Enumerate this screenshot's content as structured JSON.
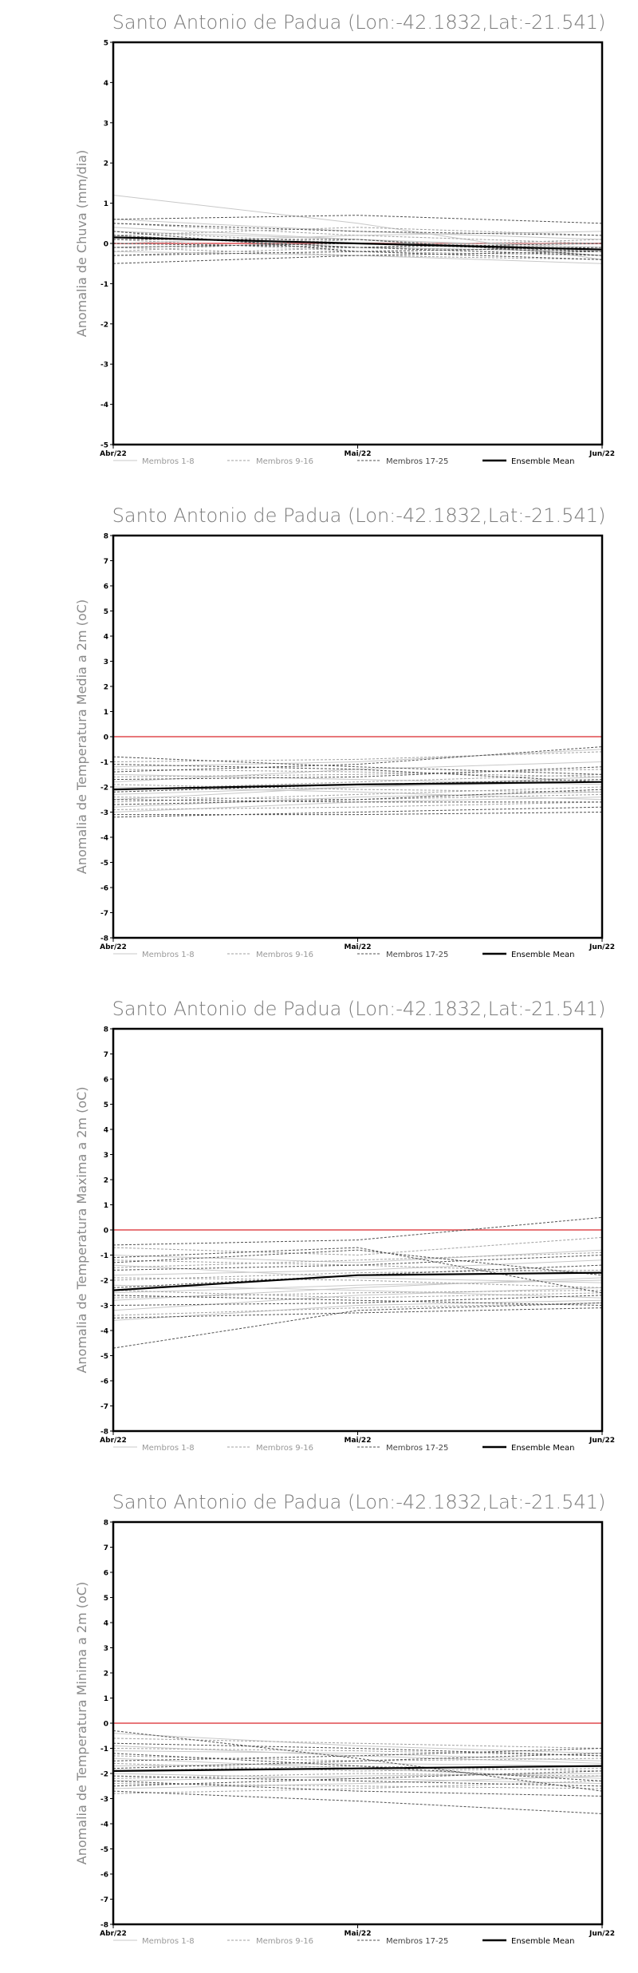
{
  "chart_data": [
    {
      "type": "line",
      "title": "Santo Antonio de Padua (Lon:-42.1832,Lat:-21.541)",
      "ylabel": "Anomalia de Chuva (mm/dia)",
      "xlabel": "",
      "categories": [
        "Abr/22",
        "Mai/22",
        "Jun/22"
      ],
      "ylim": [
        -5,
        5
      ],
      "yticks": [
        -5,
        -4,
        -3,
        -2,
        -1,
        0,
        1,
        2,
        3,
        4,
        5
      ],
      "zero_line_color": "#e8777a",
      "legend": [
        "Membros 1-8",
        "Membros 9-16",
        "Membros 17-25",
        "Ensemble Mean"
      ],
      "series": [
        {
          "group": "Membros 1-8",
          "values": [
            1.2,
            0.5,
            -0.4
          ]
        },
        {
          "group": "Membros 1-8",
          "values": [
            0.6,
            0.3,
            0.1
          ]
        },
        {
          "group": "Membros 1-8",
          "values": [
            0.4,
            0.1,
            -0.3
          ]
        },
        {
          "group": "Membros 1-8",
          "values": [
            0.2,
            -0.1,
            -0.2
          ]
        },
        {
          "group": "Membros 1-8",
          "values": [
            0.0,
            0.2,
            0.3
          ]
        },
        {
          "group": "Membros 1-8",
          "values": [
            -0.2,
            -0.3,
            -0.5
          ]
        },
        {
          "group": "Membros 1-8",
          "values": [
            -0.1,
            0.0,
            0.0
          ]
        },
        {
          "group": "Membros 1-8",
          "values": [
            0.3,
            0.1,
            -0.1
          ]
        },
        {
          "group": "Membros 9-16",
          "values": [
            0.5,
            0.2,
            0.0
          ]
        },
        {
          "group": "Membros 9-16",
          "values": [
            0.1,
            -0.2,
            -0.3
          ]
        },
        {
          "group": "Membros 9-16",
          "values": [
            -0.3,
            -0.1,
            -0.2
          ]
        },
        {
          "group": "Membros 9-16",
          "values": [
            0.2,
            0.4,
            0.2
          ]
        },
        {
          "group": "Membros 9-16",
          "values": [
            -0.1,
            -0.3,
            -0.4
          ]
        },
        {
          "group": "Membros 9-16",
          "values": [
            0.3,
            0.0,
            -0.1
          ]
        },
        {
          "group": "Membros 9-16",
          "values": [
            0.0,
            -0.1,
            0.1
          ]
        },
        {
          "group": "Membros 9-16",
          "values": [
            -0.2,
            0.1,
            -0.2
          ]
        },
        {
          "group": "Membros 17-25",
          "values": [
            0.6,
            0.7,
            0.5
          ]
        },
        {
          "group": "Membros 17-25",
          "values": [
            0.5,
            0.3,
            0.2
          ]
        },
        {
          "group": "Membros 17-25",
          "values": [
            0.3,
            -0.2,
            -0.1
          ]
        },
        {
          "group": "Membros 17-25",
          "values": [
            0.1,
            0.1,
            -0.3
          ]
        },
        {
          "group": "Membros 17-25",
          "values": [
            -0.1,
            0.0,
            -0.2
          ]
        },
        {
          "group": "Membros 17-25",
          "values": [
            -0.3,
            -0.2,
            -0.4
          ]
        },
        {
          "group": "Membros 17-25",
          "values": [
            -0.5,
            -0.3,
            -0.2
          ]
        },
        {
          "group": "Membros 17-25",
          "values": [
            0.2,
            -0.1,
            0.0
          ]
        },
        {
          "group": "Membros 17-25",
          "values": [
            0.0,
            -0.1,
            -0.3
          ]
        },
        {
          "group": "Ensemble Mean",
          "values": [
            0.15,
            0.0,
            -0.15
          ]
        }
      ]
    },
    {
      "type": "line",
      "title": "Santo Antonio de Padua (Lon:-42.1832,Lat:-21.541)",
      "ylabel": "Anomalia de Temperatura Media a 2m (oC)",
      "xlabel": "",
      "categories": [
        "Abr/22",
        "Mai/22",
        "Jun/22"
      ],
      "ylim": [
        -8,
        8
      ],
      "yticks": [
        -8,
        -7,
        -6,
        -5,
        -4,
        -3,
        -2,
        -1,
        0,
        1,
        2,
        3,
        4,
        5,
        6,
        7,
        8
      ],
      "zero_line_color": "#e8777a",
      "legend": [
        "Membros 1-8",
        "Membros 9-16",
        "Membros 17-25",
        "Ensemble Mean"
      ],
      "series": [
        {
          "group": "Membros 1-8",
          "values": [
            -1.2,
            -1.0,
            -0.5
          ]
        },
        {
          "group": "Membros 1-8",
          "values": [
            -1.8,
            -1.3,
            -1.0
          ]
        },
        {
          "group": "Membros 1-8",
          "values": [
            -2.3,
            -2.0,
            -1.6
          ]
        },
        {
          "group": "Membros 1-8",
          "values": [
            -2.8,
            -2.4,
            -2.2
          ]
        },
        {
          "group": "Membros 1-8",
          "values": [
            -1.5,
            -1.7,
            -1.9
          ]
        },
        {
          "group": "Membros 1-8",
          "values": [
            -2.0,
            -2.2,
            -2.5
          ]
        },
        {
          "group": "Membros 1-8",
          "values": [
            -2.5,
            -2.0,
            -1.8
          ]
        },
        {
          "group": "Membros 1-8",
          "values": [
            -3.0,
            -2.6,
            -2.4
          ]
        },
        {
          "group": "Membros 9-16",
          "values": [
            -1.0,
            -0.9,
            -0.6
          ]
        },
        {
          "group": "Membros 9-16",
          "values": [
            -1.6,
            -1.5,
            -1.3
          ]
        },
        {
          "group": "Membros 9-16",
          "values": [
            -2.1,
            -1.8,
            -1.5
          ]
        },
        {
          "group": "Membros 9-16",
          "values": [
            -2.6,
            -2.3,
            -2.0
          ]
        },
        {
          "group": "Membros 9-16",
          "values": [
            -2.9,
            -2.8,
            -2.6
          ]
        },
        {
          "group": "Membros 9-16",
          "values": [
            -1.9,
            -2.1,
            -2.2
          ]
        },
        {
          "group": "Membros 9-16",
          "values": [
            -1.3,
            -1.4,
            -1.6
          ]
        },
        {
          "group": "Membros 9-16",
          "values": [
            -2.4,
            -2.5,
            -2.3
          ]
        },
        {
          "group": "Membros 17-25",
          "values": [
            -0.8,
            -1.2,
            -1.5
          ]
        },
        {
          "group": "Membros 17-25",
          "values": [
            -1.4,
            -1.1,
            -0.4
          ]
        },
        {
          "group": "Membros 17-25",
          "values": [
            -1.7,
            -1.6,
            -1.2
          ]
        },
        {
          "group": "Membros 17-25",
          "values": [
            -2.2,
            -1.9,
            -1.7
          ]
        },
        {
          "group": "Membros 17-25",
          "values": [
            -2.7,
            -2.5,
            -2.1
          ]
        },
        {
          "group": "Membros 17-25",
          "values": [
            -3.1,
            -3.1,
            -3.0
          ]
        },
        {
          "group": "Membros 17-25",
          "values": [
            -3.2,
            -3.0,
            -2.8
          ]
        },
        {
          "group": "Membros 17-25",
          "values": [
            -2.5,
            -2.6,
            -2.6
          ]
        },
        {
          "group": "Membros 17-25",
          "values": [
            -1.1,
            -1.3,
            -1.8
          ]
        },
        {
          "group": "Ensemble Mean",
          "values": [
            -2.1,
            -1.9,
            -1.8
          ]
        }
      ]
    },
    {
      "type": "line",
      "title": "Santo Antonio de Padua (Lon:-42.1832,Lat:-21.541)",
      "ylabel": "Anomalia de Temperatura Maxima a 2m (oC)",
      "xlabel": "",
      "categories": [
        "Abr/22",
        "Mai/22",
        "Jun/22"
      ],
      "ylim": [
        -8,
        8
      ],
      "yticks": [
        -8,
        -7,
        -6,
        -5,
        -4,
        -3,
        -2,
        -1,
        0,
        1,
        2,
        3,
        4,
        5,
        6,
        7,
        8
      ],
      "zero_line_color": "#e8777a",
      "legend": [
        "Membros 1-8",
        "Membros 9-16",
        "Membros 17-25",
        "Ensemble Mean"
      ],
      "series": [
        {
          "group": "Membros 1-8",
          "values": [
            -1.0,
            -1.3,
            -0.8
          ]
        },
        {
          "group": "Membros 1-8",
          "values": [
            -1.8,
            -1.6,
            -1.2
          ]
        },
        {
          "group": "Membros 1-8",
          "values": [
            -2.5,
            -2.2,
            -2.0
          ]
        },
        {
          "group": "Membros 1-8",
          "values": [
            -3.2,
            -2.6,
            -2.3
          ]
        },
        {
          "group": "Membros 1-8",
          "values": [
            -1.4,
            -1.9,
            -2.1
          ]
        },
        {
          "group": "Membros 1-8",
          "values": [
            -2.2,
            -2.4,
            -2.7
          ]
        },
        {
          "group": "Membros 1-8",
          "values": [
            -2.8,
            -2.3,
            -1.9
          ]
        },
        {
          "group": "Membros 1-8",
          "values": [
            -3.6,
            -3.0,
            -2.8
          ]
        },
        {
          "group": "Membros 9-16",
          "values": [
            -0.7,
            -1.0,
            -0.3
          ]
        },
        {
          "group": "Membros 9-16",
          "values": [
            -1.5,
            -1.2,
            -0.9
          ]
        },
        {
          "group": "Membros 9-16",
          "values": [
            -2.0,
            -1.7,
            -1.6
          ]
        },
        {
          "group": "Membros 9-16",
          "values": [
            -2.7,
            -2.5,
            -2.4
          ]
        },
        {
          "group": "Membros 9-16",
          "values": [
            -3.4,
            -3.1,
            -2.9
          ]
        },
        {
          "group": "Membros 9-16",
          "values": [
            -1.9,
            -2.0,
            -2.3
          ]
        },
        {
          "group": "Membros 9-16",
          "values": [
            -1.2,
            -1.4,
            -1.7
          ]
        },
        {
          "group": "Membros 9-16",
          "values": [
            -2.4,
            -2.7,
            -2.5
          ]
        },
        {
          "group": "Membros 17-25",
          "values": [
            -0.6,
            -0.4,
            0.5
          ]
        },
        {
          "group": "Membros 17-25",
          "values": [
            -1.1,
            -0.7,
            -2.5
          ]
        },
        {
          "group": "Membros 17-25",
          "values": [
            -1.6,
            -1.4,
            -1.0
          ]
        },
        {
          "group": "Membros 17-25",
          "values": [
            -2.3,
            -1.8,
            -1.4
          ]
        },
        {
          "group": "Membros 17-25",
          "values": [
            -3.0,
            -2.9,
            -2.6
          ]
        },
        {
          "group": "Membros 17-25",
          "values": [
            -3.5,
            -3.3,
            -3.1
          ]
        },
        {
          "group": "Membros 17-25",
          "values": [
            -4.7,
            -3.2,
            -2.9
          ]
        },
        {
          "group": "Membros 17-25",
          "values": [
            -2.6,
            -2.8,
            -3.0
          ]
        },
        {
          "group": "Membros 17-25",
          "values": [
            -1.3,
            -0.8,
            -1.8
          ]
        },
        {
          "group": "Ensemble Mean",
          "values": [
            -2.4,
            -1.8,
            -1.7
          ]
        }
      ]
    },
    {
      "type": "line",
      "title": "Santo Antonio de Padua (Lon:-42.1832,Lat:-21.541)",
      "ylabel": "Anomalia de Temperatura Minima a 2m (oC)",
      "xlabel": "",
      "categories": [
        "Abr/22",
        "Mai/22",
        "Jun/22"
      ],
      "ylim": [
        -8,
        8
      ],
      "yticks": [
        -8,
        -7,
        -6,
        -5,
        -4,
        -3,
        -2,
        -1,
        0,
        1,
        2,
        3,
        4,
        5,
        6,
        7,
        8
      ],
      "zero_line_color": "#e8777a",
      "legend": [
        "Membros 1-8",
        "Membros 9-16",
        "Membros 17-25",
        "Ensemble Mean"
      ],
      "series": [
        {
          "group": "Membros 1-8",
          "values": [
            -0.4,
            -0.9,
            -1.2
          ]
        },
        {
          "group": "Membros 1-8",
          "values": [
            -1.1,
            -1.2,
            -1.5
          ]
        },
        {
          "group": "Membros 1-8",
          "values": [
            -1.7,
            -1.6,
            -1.7
          ]
        },
        {
          "group": "Membros 1-8",
          "values": [
            -2.3,
            -2.1,
            -2.0
          ]
        },
        {
          "group": "Membros 1-8",
          "values": [
            -1.4,
            -1.8,
            -2.2
          ]
        },
        {
          "group": "Membros 1-8",
          "values": [
            -2.0,
            -2.2,
            -2.4
          ]
        },
        {
          "group": "Membros 1-8",
          "values": [
            -2.6,
            -2.4,
            -2.1
          ]
        },
        {
          "group": "Membros 1-8",
          "values": [
            -0.9,
            -1.3,
            -1.6
          ]
        },
        {
          "group": "Membros 9-16",
          "values": [
            -0.6,
            -0.8,
            -1.0
          ]
        },
        {
          "group": "Membros 9-16",
          "values": [
            -1.3,
            -1.5,
            -1.4
          ]
        },
        {
          "group": "Membros 9-16",
          "values": [
            -1.9,
            -1.7,
            -1.9
          ]
        },
        {
          "group": "Membros 9-16",
          "values": [
            -2.4,
            -2.5,
            -2.6
          ]
        },
        {
          "group": "Membros 9-16",
          "values": [
            -2.8,
            -2.6,
            -2.3
          ]
        },
        {
          "group": "Membros 9-16",
          "values": [
            -1.6,
            -1.9,
            -1.8
          ]
        },
        {
          "group": "Membros 9-16",
          "values": [
            -1.0,
            -1.1,
            -1.3
          ]
        },
        {
          "group": "Membros 9-16",
          "values": [
            -2.2,
            -2.0,
            -2.1
          ]
        },
        {
          "group": "Membros 17-25",
          "values": [
            -0.3,
            -1.4,
            -2.7
          ]
        },
        {
          "group": "Membros 17-25",
          "values": [
            -0.8,
            -1.0,
            -1.3
          ]
        },
        {
          "group": "Membros 17-25",
          "values": [
            -1.5,
            -1.3,
            -1.0
          ]
        },
        {
          "group": "Membros 17-25",
          "values": [
            -2.1,
            -2.3,
            -2.5
          ]
        },
        {
          "group": "Membros 17-25",
          "values": [
            -2.7,
            -3.1,
            -3.6
          ]
        },
        {
          "group": "Membros 17-25",
          "values": [
            -2.5,
            -2.2,
            -1.9
          ]
        },
        {
          "group": "Membros 17-25",
          "values": [
            -1.2,
            -1.7,
            -2.3
          ]
        },
        {
          "group": "Membros 17-25",
          "values": [
            -1.8,
            -1.5,
            -1.2
          ]
        },
        {
          "group": "Membros 17-25",
          "values": [
            -2.3,
            -2.7,
            -2.9
          ]
        },
        {
          "group": "Ensemble Mean",
          "values": [
            -1.9,
            -1.8,
            -1.7
          ]
        }
      ]
    }
  ],
  "styles": {
    "group_colors": {
      "Membros 1-8": "#c8c8c8",
      "Membros 9-16": "#a0a0a0",
      "Membros 17-25": "#505050",
      "Ensemble Mean": "#000000"
    }
  }
}
